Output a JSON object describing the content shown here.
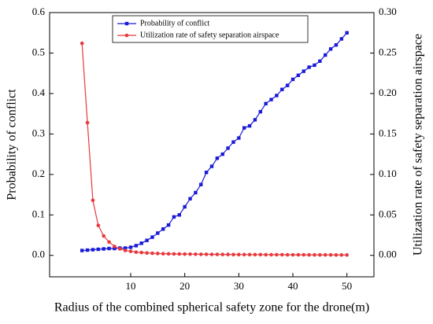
{
  "chart_data": {
    "type": "line",
    "xlabel": "Radius of the combined spherical safety zone for the drone(m)",
    "ylabel": "Probability of conflict",
    "y2label": "Utilization rate of safety separation airspace",
    "x": [
      1,
      2,
      3,
      4,
      5,
      6,
      7,
      8,
      9,
      10,
      11,
      12,
      13,
      14,
      15,
      16,
      17,
      18,
      19,
      20,
      21,
      22,
      23,
      24,
      25,
      26,
      27,
      28,
      29,
      30,
      31,
      32,
      33,
      34,
      35,
      36,
      37,
      38,
      39,
      40,
      41,
      42,
      43,
      44,
      45,
      46,
      47,
      48,
      49,
      50
    ],
    "series": [
      {
        "name": "Probability of conflict",
        "color": "#1a1ad8",
        "marker": "square",
        "values": [
          0.012,
          0.013,
          0.014,
          0.015,
          0.016,
          0.017,
          0.017,
          0.018,
          0.018,
          0.02,
          0.024,
          0.03,
          0.037,
          0.045,
          0.055,
          0.065,
          0.075,
          0.095,
          0.1,
          0.12,
          0.14,
          0.155,
          0.175,
          0.205,
          0.22,
          0.24,
          0.25,
          0.265,
          0.28,
          0.29,
          0.315,
          0.32,
          0.335,
          0.355,
          0.375,
          0.385,
          0.395,
          0.41,
          0.42,
          0.435,
          0.445,
          0.455,
          0.465,
          0.47,
          0.48,
          0.495,
          0.51,
          0.52,
          0.535,
          0.55
        ]
      },
      {
        "name": "Utilization rate of safety separation airspace",
        "color": "#e8383d",
        "marker": "circle",
        "axis": "y2",
        "values": [
          0.262,
          0.164,
          0.068,
          0.037,
          0.024,
          0.0165,
          0.011,
          0.008,
          0.006,
          0.005,
          0.004,
          0.0035,
          0.003,
          0.0026,
          0.0023,
          0.002,
          0.0019,
          0.0018,
          0.0017,
          0.0016,
          0.0015,
          0.0014,
          0.0013,
          0.0013,
          0.0012,
          0.0012,
          0.0011,
          0.0011,
          0.001,
          0.001,
          0.001,
          0.0009,
          0.0009,
          0.0009,
          0.0008,
          0.0008,
          0.0008,
          0.0008,
          0.0007,
          0.0007,
          0.0007,
          0.0007,
          0.0006,
          0.0006,
          0.0006,
          0.0006,
          0.0006,
          0.0005,
          0.0005,
          0.0005
        ]
      }
    ],
    "xlim": [
      -5,
      55
    ],
    "xticks": [
      10,
      20,
      30,
      40,
      50
    ],
    "ylim": [
      -0.053,
      0.6
    ],
    "yticks": [
      {
        "value": 0,
        "label": "0.0"
      },
      0.1,
      0.2,
      0.3,
      0.4,
      0.5,
      0.6
    ],
    "y2lim": [
      -0.0265,
      0.3
    ],
    "y2ticks": [
      {
        "value": 0,
        "label": "0.00"
      },
      0.05,
      {
        "value": 0.1,
        "label": "0.10"
      },
      0.15,
      {
        "value": 0.2,
        "label": "0.20"
      },
      0.25,
      {
        "value": 0.3,
        "label": "0.30"
      }
    ],
    "legend": "top-left"
  }
}
